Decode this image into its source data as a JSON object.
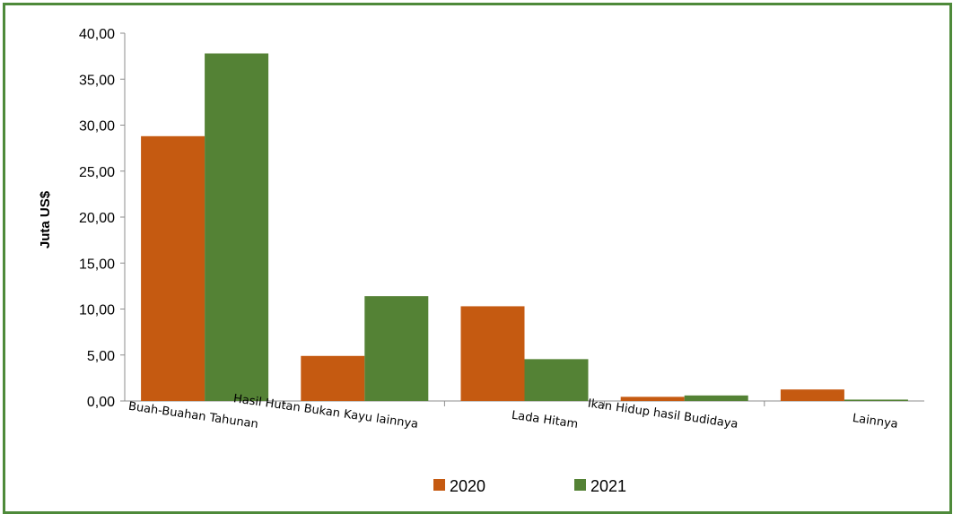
{
  "chart_data": {
    "type": "bar",
    "categories": [
      "Buah-Buahan Tahunan",
      "Hasil Hutan Bukan Kayu lainnya",
      "Lada Hitam",
      "Ikan Hidup hasil Budidaya",
      "Lainnya"
    ],
    "series": [
      {
        "name": "2020",
        "color": "#c55a11",
        "values": [
          28.8,
          4.9,
          10.3,
          0.45,
          1.25
        ]
      },
      {
        "name": "2021",
        "color": "#548235",
        "values": [
          37.8,
          11.4,
          4.55,
          0.6,
          0.15
        ]
      }
    ],
    "ylabel": "Juta US$",
    "ylim": [
      0,
      40
    ],
    "yticks": [
      "0,00",
      "5,00",
      "10,00",
      "15,00",
      "20,00",
      "25,00",
      "30,00",
      "35,00",
      "40,00"
    ],
    "ytick_values": [
      0,
      5,
      10,
      15,
      20,
      25,
      30,
      35,
      40
    ],
    "legend_position": "bottom"
  }
}
